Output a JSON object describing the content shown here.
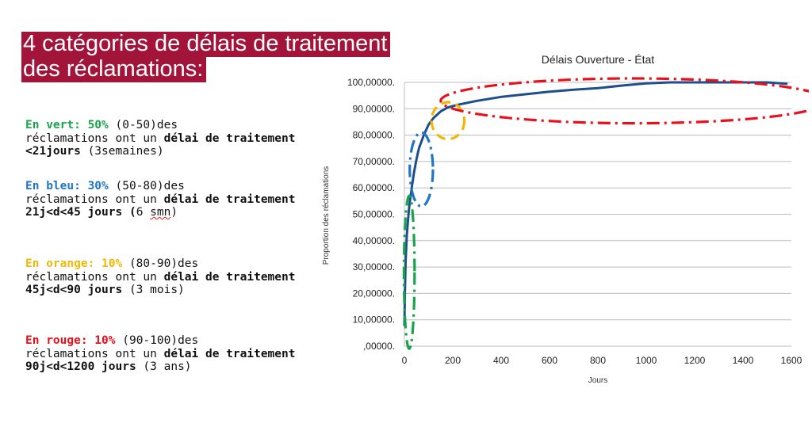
{
  "heading": {
    "line1": "4 catégories de délais de traitement",
    "line2": "des réclamations:"
  },
  "categories_text": [
    {
      "lead": "En vert: 50%",
      "color": "#1aa34a",
      "range": " (0-50)des",
      "line2": "réclamations ont un ",
      "bold": "délai de traitement <21jours",
      "tail": " (3semaines)"
    },
    {
      "lead": "En bleu: 30%",
      "color": "#1f73c8",
      "range": " (50-80)des",
      "line2": "réclamations ont un ",
      "bold": "délai de traitement 21j<d<45 jours (",
      "tail": "6 ",
      "tail2": "smn",
      "tail3": ")"
    },
    {
      "lead": "En orange: 10%",
      "color": "#f2b705",
      "range": " (80-90)des",
      "line2": "réclamations ont un ",
      "bold": "délai de traitement 45j<d<90 jours",
      "tail": " (3 mois)"
    },
    {
      "lead": "En rouge: 10%",
      "color": "#e8101a",
      "range": " (90-100)des",
      "line2": "réclamations ont un ",
      "bold": "délai de traitement 90j<d<1200 jours",
      "tail": " (3 ans)"
    }
  ],
  "chart_data": {
    "type": "line",
    "title": "Délais Ouverture - État",
    "xlabel": "Jours",
    "ylabel": "Proportion des réclamations",
    "xlim": [
      0,
      1600
    ],
    "ylim": [
      0,
      100
    ],
    "x_ticks": [
      "0",
      "200",
      "400",
      "600",
      "800",
      "1000",
      "1200",
      "1400",
      "1600"
    ],
    "y_ticks": [
      ",00000.",
      "10,00000.",
      "20,00000.",
      "30,00000.",
      "40,00000.",
      "50,00000.",
      "60,00000.",
      "70,00000.",
      "80,00000.",
      "90,00000.",
      "100,00000."
    ],
    "grid": "horizontal",
    "series": [
      {
        "color": "#1f4e8c",
        "x": [
          0,
          2,
          5,
          10,
          15,
          20,
          30,
          40,
          50,
          60,
          80,
          100,
          120,
          150,
          180,
          220,
          300,
          400,
          500,
          600,
          700,
          800,
          900,
          1000,
          1100,
          1200,
          1300,
          1400,
          1500,
          1580
        ],
        "y": [
          8,
          20,
          32,
          42,
          48,
          53,
          60,
          66,
          71,
          75,
          80,
          84,
          86.5,
          89,
          90.5,
          91.5,
          93,
          94.5,
          95.5,
          96.5,
          97.2,
          97.8,
          98.8,
          99.6,
          100,
          100,
          100,
          100,
          100,
          99.5
        ]
      }
    ],
    "annotations": [
      {
        "shape": "ellipse",
        "color": "#1aa34a",
        "style": "dash-dot",
        "cx": 20,
        "cy": 28,
        "rx": 22,
        "ry": 29
      },
      {
        "shape": "ellipse",
        "color": "#1f73c8",
        "style": "dash-dot",
        "cx": 70,
        "cy": 67,
        "rx": 48,
        "ry": 14
      },
      {
        "shape": "ellipse",
        "color": "#f2b705",
        "style": "dash",
        "cx": 180,
        "cy": 85.5,
        "rx": 68,
        "ry": 7
      },
      {
        "shape": "ellipse",
        "color": "#e8101a",
        "style": "dash-dot",
        "cx": 950,
        "cy": 93,
        "rx": 800,
        "ry": 8.5
      }
    ]
  }
}
